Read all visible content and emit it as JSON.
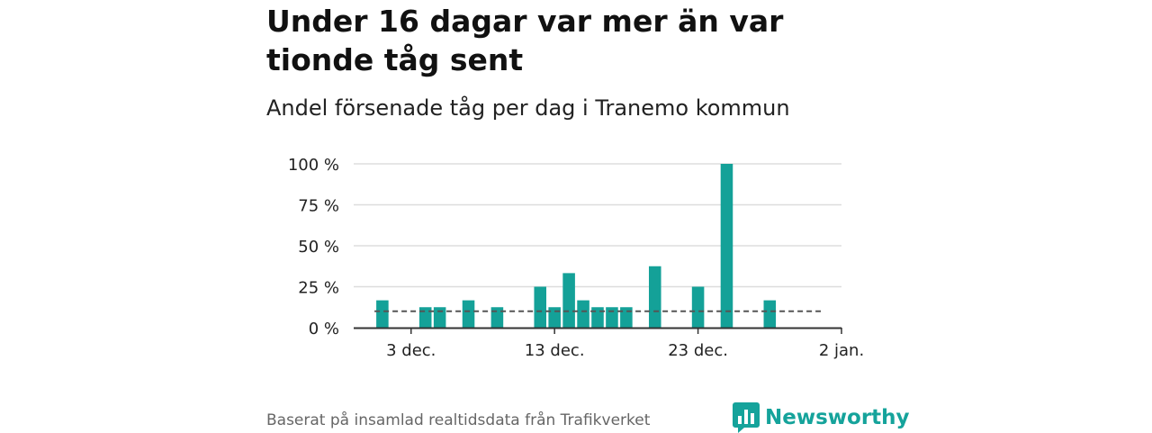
{
  "title": "Under 16 dagar var mer än var tionde tåg sent",
  "subtitle": "Andel försenade tåg per dag i Tranemo kommun",
  "source": "Baserat på insamlad realtidsdata från Trafikverket",
  "brand": {
    "name": "Newsworthy",
    "logo_icon": "bar-chart-speech-bubble-icon"
  },
  "colors": {
    "bar": "#14a198",
    "grid": "#dddddd",
    "baseline": "#333333",
    "reference_line": "#555555",
    "brand": "#15a39b"
  },
  "chart_data": {
    "type": "bar",
    "title": "Andel försenade tåg per dag i Tranemo kommun",
    "xlabel": "",
    "ylabel": "",
    "ylim": [
      0,
      100
    ],
    "xlim": [
      "2023-11-29",
      "2024-01-02"
    ],
    "y_ticks": [
      0,
      25,
      50,
      75,
      100
    ],
    "y_tick_labels": [
      "0 %",
      "25 %",
      "50 %",
      "75 %",
      "100 %"
    ],
    "x_ticks": [
      {
        "date": "2023-12-03",
        "label": "3 dec."
      },
      {
        "date": "2023-12-13",
        "label": "13 dec."
      },
      {
        "date": "2023-12-23",
        "label": "23 dec."
      },
      {
        "date": "2024-01-02",
        "label": "2 jan."
      }
    ],
    "grid": true,
    "reference_line": {
      "value": 10,
      "style": "dashed",
      "meaning": "var tionde tåg"
    },
    "bars": [
      {
        "date": "2023-12-01",
        "value": 16.7
      },
      {
        "date": "2023-12-04",
        "value": 12.5
      },
      {
        "date": "2023-12-05",
        "value": 12.5
      },
      {
        "date": "2023-12-07",
        "value": 16.7
      },
      {
        "date": "2023-12-09",
        "value": 12.5
      },
      {
        "date": "2023-12-12",
        "value": 25
      },
      {
        "date": "2023-12-13",
        "value": 12.5
      },
      {
        "date": "2023-12-14",
        "value": 33.3
      },
      {
        "date": "2023-12-15",
        "value": 16.7
      },
      {
        "date": "2023-12-16",
        "value": 12.5
      },
      {
        "date": "2023-12-17",
        "value": 12.5
      },
      {
        "date": "2023-12-18",
        "value": 12.5
      },
      {
        "date": "2023-12-20",
        "value": 37.5
      },
      {
        "date": "2023-12-23",
        "value": 25
      },
      {
        "date": "2023-12-25",
        "value": 100
      },
      {
        "date": "2023-12-28",
        "value": 16.7
      }
    ]
  }
}
